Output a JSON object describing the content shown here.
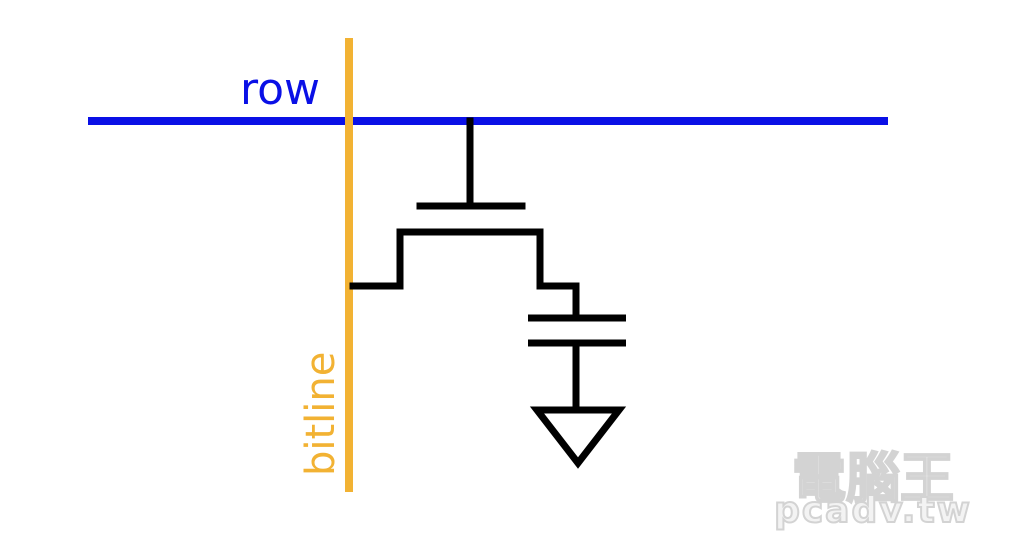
{
  "diagram": {
    "row_label": "row",
    "bitline_label": "bitline",
    "colors": {
      "row_line": "#0A10E6",
      "bitline": "#F2B233",
      "circuit": "#000000",
      "watermark_fill": "#F2F2F2",
      "watermark_stroke": "#CFCFCF"
    },
    "components": [
      "row-wire",
      "bitline-wire",
      "transistor",
      "capacitor",
      "ground-symbol"
    ]
  },
  "watermark": {
    "title": "電腦王",
    "url": "pcadv.tw"
  }
}
